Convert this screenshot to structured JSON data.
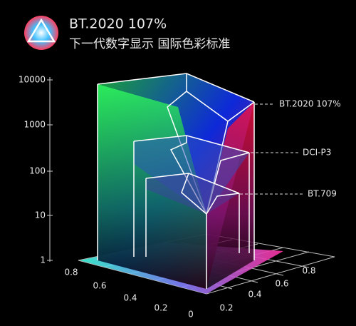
{
  "header": {
    "title": "BT.2020 107%",
    "subtitle": "下一代数字显示 国际色彩标准"
  },
  "vertical_axis": {
    "labels": [
      "10000",
      "1000",
      "100",
      "10",
      "1"
    ]
  },
  "left_axis": {
    "labels": [
      "0.8",
      "0.6",
      "0.4",
      "0.2",
      "0"
    ]
  },
  "right_axis": {
    "labels": [
      "0.2",
      "0.4",
      "0.6",
      "0.8"
    ]
  },
  "legend": [
    "BT.2020 107%",
    "DCI-P3",
    "BT.709"
  ]
}
